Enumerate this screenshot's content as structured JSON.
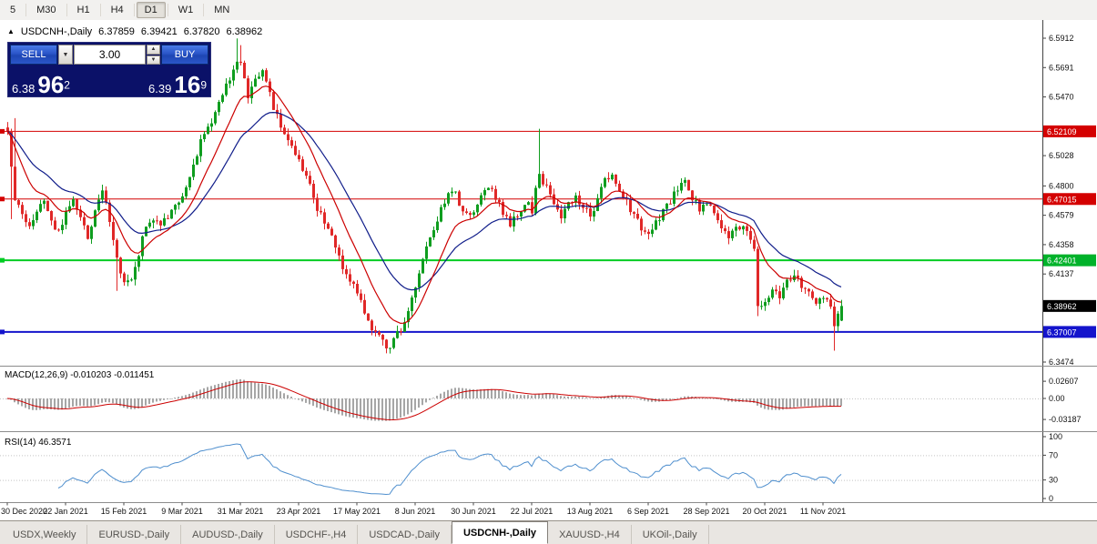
{
  "toolbar": {
    "timeframes": [
      {
        "label": "5",
        "active": false
      },
      {
        "label": "M30",
        "active": false
      },
      {
        "label": "H1",
        "active": false
      },
      {
        "label": "H4",
        "active": false
      },
      {
        "label": "D1",
        "active": true
      },
      {
        "label": "W1",
        "active": false
      },
      {
        "label": "MN",
        "active": false
      }
    ]
  },
  "quote": {
    "symbol_period": "USDCNH-,Daily",
    "open": "6.37859",
    "high": "6.39421",
    "low": "6.37820",
    "close": "6.38962"
  },
  "order_panel": {
    "sell_label": "SELL",
    "buy_label": "BUY",
    "volume": "3.00",
    "sell_price_small": "6.38",
    "sell_price_big": "96",
    "sell_price_sup": "2",
    "buy_price_small": "6.39",
    "buy_price_big": "16",
    "buy_price_sup": "9"
  },
  "axis": {
    "price_labels": [
      "6.5912",
      "6.5691",
      "6.5470",
      "6.5028",
      "6.4800",
      "6.4579",
      "6.4358",
      "6.4137",
      "6.3474"
    ],
    "price_tags": [
      {
        "text": "6.52109",
        "price": 6.52109,
        "bg": "#d40000"
      },
      {
        "text": "6.47015",
        "price": 6.47015,
        "bg": "#d40000"
      },
      {
        "text": "6.42401",
        "price": 6.42401,
        "bg": "#00b22a"
      },
      {
        "text": "6.38962",
        "price": 6.38962,
        "bg": "#000000"
      },
      {
        "text": "6.37007",
        "price": 6.37007,
        "bg": "#1414cc"
      }
    ]
  },
  "indicators": {
    "macd": {
      "label": "MACD(12,26,9) -0.010203 -0.011451",
      "value": -0.010203,
      "signal": -0.011451,
      "axis": [
        {
          "text": "0.02607",
          "value": 0.02607
        },
        {
          "text": "0.00",
          "value": 0
        },
        {
          "text": "-0.03187",
          "value": -0.03187
        }
      ]
    },
    "rsi": {
      "label": "RSI(14) 46.3571",
      "value": 46.3571,
      "levels": [
        70,
        30
      ],
      "axis": [
        {
          "text": "100",
          "value": 100
        },
        {
          "text": "70",
          "value": 70
        },
        {
          "text": "30",
          "value": 30
        },
        {
          "text": "0",
          "value": 0
        }
      ]
    }
  },
  "chart_data": {
    "type": "candlestick",
    "title": "USDCNH-,Daily",
    "ohlc_current": {
      "open": 6.37859,
      "high": 6.39421,
      "low": 6.3782,
      "close": 6.38962
    },
    "price_axis_range": {
      "top": 6.5912,
      "bottom": 6.3474
    },
    "bars": 230,
    "date_tick_interval": 16,
    "x_dates": [
      "30 Dec 2020",
      "22 Jan 2021",
      "15 Feb 2021",
      "9 Mar 2021",
      "31 Mar 2021",
      "23 Apr 2021",
      "17 May 2021",
      "8 Jun 2021",
      "30 Jun 2021",
      "22 Jul 2021",
      "13 Aug 2021",
      "6 Sep 2021",
      "28 Sep 2021",
      "20 Oct 2021",
      "11 Nov 2021"
    ],
    "h_lines": [
      {
        "price": 6.52109,
        "color": "#d40000",
        "width": 1
      },
      {
        "price": 6.47015,
        "color": "#d40000",
        "width": 1
      },
      {
        "price": 6.42401,
        "color": "#00cc22",
        "width": 2
      },
      {
        "price": 6.37007,
        "color": "#1414cc",
        "width": 2
      }
    ],
    "colors": {
      "up": "#0f9d1f",
      "down": "#e02828",
      "ma_fast": "#cc0000",
      "ma_slow": "#101d8a",
      "macd_hist": "#a6a6a6",
      "macd_signal": "#cc0000",
      "rsi_line": "#4f8fce"
    },
    "moving_averages": [
      {
        "type": "ema",
        "period": 12,
        "color": "#cc0000"
      },
      {
        "type": "ema",
        "period": 26,
        "color": "#101d8a"
      }
    ],
    "close_anchors": [
      [
        0,
        6.52
      ],
      [
        1,
        6.492
      ],
      [
        2,
        6.468
      ],
      [
        4,
        6.458
      ],
      [
        6,
        6.448
      ],
      [
        8,
        6.462
      ],
      [
        10,
        6.47
      ],
      [
        12,
        6.452
      ],
      [
        14,
        6.444
      ],
      [
        16,
        6.46
      ],
      [
        18,
        6.472
      ],
      [
        20,
        6.455
      ],
      [
        22,
        6.442
      ],
      [
        24,
        6.462
      ],
      [
        26,
        6.478
      ],
      [
        28,
        6.455
      ],
      [
        30,
        6.425
      ],
      [
        32,
        6.405
      ],
      [
        34,
        6.412
      ],
      [
        36,
        6.43
      ],
      [
        38,
        6.45
      ],
      [
        40,
        6.455
      ],
      [
        42,
        6.448
      ],
      [
        44,
        6.458
      ],
      [
        46,
        6.465
      ],
      [
        48,
        6.472
      ],
      [
        50,
        6.488
      ],
      [
        52,
        6.505
      ],
      [
        54,
        6.52
      ],
      [
        56,
        6.53
      ],
      [
        58,
        6.545
      ],
      [
        60,
        6.556
      ],
      [
        62,
        6.568
      ],
      [
        64,
        6.575
      ],
      [
        65,
        6.56
      ],
      [
        66,
        6.548
      ],
      [
        68,
        6.558
      ],
      [
        70,
        6.565
      ],
      [
        72,
        6.548
      ],
      [
        74,
        6.532
      ],
      [
        76,
        6.52
      ],
      [
        78,
        6.51
      ],
      [
        80,
        6.5
      ],
      [
        82,
        6.488
      ],
      [
        84,
        6.47
      ],
      [
        86,
        6.458
      ],
      [
        88,
        6.448
      ],
      [
        90,
        6.432
      ],
      [
        92,
        6.42
      ],
      [
        94,
        6.41
      ],
      [
        96,
        6.398
      ],
      [
        98,
        6.385
      ],
      [
        100,
        6.372
      ],
      [
        102,
        6.365
      ],
      [
        104,
        6.358
      ],
      [
        106,
        6.364
      ],
      [
        108,
        6.372
      ],
      [
        110,
        6.385
      ],
      [
        112,
        6.402
      ],
      [
        114,
        6.425
      ],
      [
        116,
        6.443
      ],
      [
        118,
        6.455
      ],
      [
        120,
        6.468
      ],
      [
        122,
        6.478
      ],
      [
        124,
        6.468
      ],
      [
        126,
        6.458
      ],
      [
        128,
        6.462
      ],
      [
        130,
        6.472
      ],
      [
        132,
        6.48
      ],
      [
        134,
        6.472
      ],
      [
        136,
        6.46
      ],
      [
        138,
        6.452
      ],
      [
        140,
        6.458
      ],
      [
        142,
        6.468
      ],
      [
        144,
        6.462
      ],
      [
        146,
        6.49
      ],
      [
        148,
        6.478
      ],
      [
        150,
        6.465
      ],
      [
        152,
        6.458
      ],
      [
        154,
        6.465
      ],
      [
        156,
        6.472
      ],
      [
        158,
        6.465
      ],
      [
        160,
        6.458
      ],
      [
        162,
        6.468
      ],
      [
        164,
        6.485
      ],
      [
        166,
        6.49
      ],
      [
        168,
        6.475
      ],
      [
        170,
        6.468
      ],
      [
        172,
        6.458
      ],
      [
        174,
        6.448
      ],
      [
        176,
        6.442
      ],
      [
        178,
        6.452
      ],
      [
        180,
        6.462
      ],
      [
        182,
        6.468
      ],
      [
        184,
        6.478
      ],
      [
        186,
        6.485
      ],
      [
        188,
        6.472
      ],
      [
        190,
        6.462
      ],
      [
        192,
        6.468
      ],
      [
        194,
        6.458
      ],
      [
        196,
        6.448
      ],
      [
        198,
        6.442
      ],
      [
        200,
        6.448
      ],
      [
        202,
        6.452
      ],
      [
        204,
        6.44
      ],
      [
        205,
        6.432
      ],
      [
        206,
        6.39
      ],
      [
        207,
        6.388
      ],
      [
        208,
        6.395
      ],
      [
        210,
        6.402
      ],
      [
        212,
        6.398
      ],
      [
        214,
        6.408
      ],
      [
        216,
        6.412
      ],
      [
        218,
        6.404
      ],
      [
        220,
        6.398
      ],
      [
        222,
        6.392
      ],
      [
        224,
        6.396
      ],
      [
        226,
        6.388
      ],
      [
        227,
        6.372
      ],
      [
        228,
        6.382
      ],
      [
        229,
        6.3896
      ]
    ],
    "spike_wicks": [
      [
        1,
        "l",
        6.455
      ],
      [
        2,
        "h",
        6.531
      ],
      [
        30,
        "l",
        6.401
      ],
      [
        63,
        "h",
        6.591
      ],
      [
        64,
        "h",
        6.586
      ],
      [
        104,
        "l",
        6.354
      ],
      [
        146,
        "h",
        6.523
      ],
      [
        206,
        "l",
        6.382
      ],
      [
        227,
        "l",
        6.356
      ]
    ]
  },
  "tabs": [
    {
      "label": "USDX,Weekly",
      "active": false
    },
    {
      "label": "EURUSD-,Daily",
      "active": false
    },
    {
      "label": "AUDUSD-,Daily",
      "active": false
    },
    {
      "label": "USDCHF-,H4",
      "active": false
    },
    {
      "label": "USDCAD-,Daily",
      "active": false
    },
    {
      "label": "USDCNH-,Daily",
      "active": true
    },
    {
      "label": "XAUUSD-,H4",
      "active": false
    },
    {
      "label": "UKOil-,Daily",
      "active": false
    }
  ]
}
